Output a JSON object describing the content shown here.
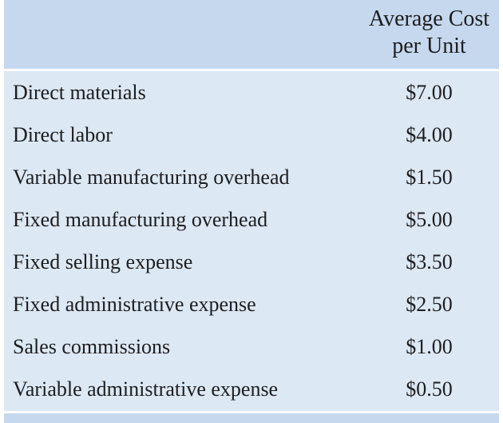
{
  "table": {
    "header": {
      "amount_col_line1": "Average Cost",
      "amount_col_line2": "per Unit"
    },
    "rows": [
      {
        "label": "Direct materials",
        "value": "$7.00"
      },
      {
        "label": "Direct labor",
        "value": "$4.00"
      },
      {
        "label": "Variable manufacturing overhead",
        "value": "$1.50"
      },
      {
        "label": "Fixed manufacturing overhead",
        "value": "$5.00"
      },
      {
        "label": "Fixed selling expense",
        "value": "$3.50"
      },
      {
        "label": "Fixed administrative expense",
        "value": "$2.50"
      },
      {
        "label": "Sales commissions",
        "value": "$1.00"
      },
      {
        "label": "Variable administrative expense",
        "value": "$0.50"
      }
    ]
  },
  "colors": {
    "header_bg": "#c5d8ee",
    "body_bg": "#dce8f4",
    "footer_bg": "#c5d8ee",
    "frame_bg": "#ffffff",
    "text": "#1d1d1f"
  }
}
